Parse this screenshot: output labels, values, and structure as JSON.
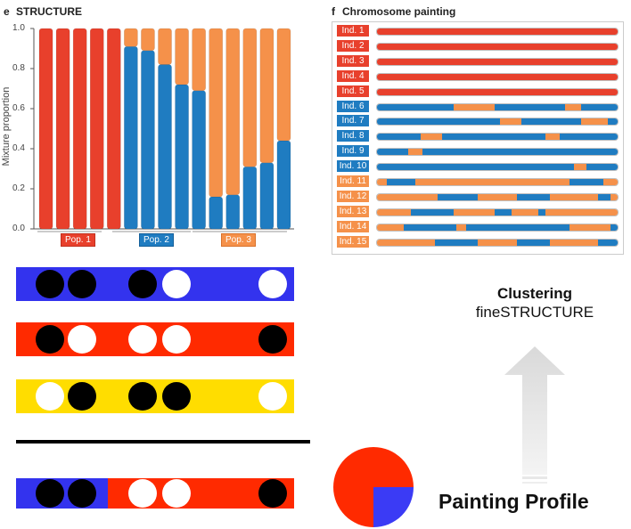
{
  "panel_e": {
    "letter": "e",
    "title": "STRUCTURE",
    "ylabel": "Mixture proportion",
    "yticks": [
      "1.0",
      "0.8",
      "0.6",
      "0.4",
      "0.2",
      "0.0"
    ],
    "populations": [
      "Pop. 1",
      "Pop. 2",
      "Pop. 3"
    ]
  },
  "panel_f": {
    "letter": "f",
    "title": "Chromosome painting",
    "individuals": [
      "Ind. 1",
      "Ind. 2",
      "Ind. 3",
      "Ind. 4",
      "Ind. 5",
      "Ind. 6",
      "Ind. 7",
      "Ind. 8",
      "Ind. 9",
      "Ind. 10",
      "Ind. 11",
      "Ind. 12",
      "Ind. 13",
      "Ind. 14",
      "Ind. 15"
    ]
  },
  "colors": {
    "red": "#e8402c",
    "blue": "#1f7cc1",
    "orange": "#f5914a",
    "bar_blue": "#3333ee",
    "bar_red": "#ff2a00",
    "bar_yellow": "#ffdd00",
    "pie_red": "#ff2a00",
    "pie_blue": "#3b3bf5"
  },
  "chart_data": {
    "type": "bar",
    "stacked": true,
    "ylabel": "Mixture proportion",
    "ylim": [
      0,
      1
    ],
    "categories": [
      "1",
      "2",
      "3",
      "4",
      "5",
      "6",
      "7",
      "8",
      "9",
      "10",
      "11",
      "12",
      "13",
      "14",
      "15"
    ],
    "groups": [
      "Pop. 1",
      "Pop. 2",
      "Pop. 3"
    ],
    "series": [
      {
        "color": "#e8402c",
        "values": [
          1,
          1,
          1,
          1,
          1,
          0,
          0,
          0,
          0,
          0,
          0,
          0,
          0,
          0,
          0
        ]
      },
      {
        "color": "#1f7cc1",
        "values": [
          0,
          0,
          0,
          0,
          0,
          0.91,
          0.89,
          0.82,
          0.72,
          0.69,
          0.16,
          0.17,
          0.31,
          0.33,
          0.44
        ]
      },
      {
        "color": "#f5914a",
        "values": [
          0,
          0,
          0,
          0,
          0,
          0.09,
          0.11,
          0.18,
          0.28,
          0.31,
          0.84,
          0.83,
          0.69,
          0.67,
          0.56
        ]
      }
    ]
  },
  "painting": [
    [
      [
        "r",
        1
      ]
    ],
    [
      [
        "r",
        1
      ]
    ],
    [
      [
        "r",
        1
      ]
    ],
    [
      [
        "r",
        1
      ]
    ],
    [
      [
        "r",
        1
      ]
    ],
    [
      [
        "b",
        0.32
      ],
      [
        "o",
        0.17
      ],
      [
        "b",
        0.29
      ],
      [
        "o",
        0.07
      ],
      [
        "b",
        0.15
      ]
    ],
    [
      [
        "b",
        0.51
      ],
      [
        "o",
        0.09
      ],
      [
        "b",
        0.25
      ],
      [
        "o",
        0.11
      ],
      [
        "b",
        0.04
      ]
    ],
    [
      [
        "b",
        0.18
      ],
      [
        "o",
        0.09
      ],
      [
        "b",
        0.43
      ],
      [
        "o",
        0.06
      ],
      [
        "b",
        0.24
      ]
    ],
    [
      [
        "b",
        0.13
      ],
      [
        "o",
        0.06
      ],
      [
        "b",
        0.81
      ]
    ],
    [
      [
        "b",
        0.82
      ],
      [
        "o",
        0.05
      ],
      [
        "b",
        0.13
      ]
    ],
    [
      [
        "o",
        0.04
      ],
      [
        "b",
        0.12
      ],
      [
        "o",
        0.64
      ],
      [
        "b",
        0.14
      ],
      [
        "o",
        0.06
      ]
    ],
    [
      [
        "o",
        0.25
      ],
      [
        "b",
        0.17
      ],
      [
        "o",
        0.16
      ],
      [
        "b",
        0.14
      ],
      [
        "o",
        0.2
      ],
      [
        "b",
        0.05
      ],
      [
        "o",
        0.03
      ]
    ],
    [
      [
        "o",
        0.14
      ],
      [
        "b",
        0.18
      ],
      [
        "o",
        0.17
      ],
      [
        "b",
        0.07
      ],
      [
        "o",
        0.11
      ],
      [
        "b",
        0.03
      ],
      [
        "o",
        0.3
      ]
    ],
    [
      [
        "o",
        0.11
      ],
      [
        "b",
        0.22
      ],
      [
        "o",
        0.04
      ],
      [
        "b",
        0.43
      ],
      [
        "o",
        0.17
      ],
      [
        "b",
        0.03
      ]
    ],
    [
      [
        "o",
        0.24
      ],
      [
        "b",
        0.18
      ],
      [
        "o",
        0.16
      ],
      [
        "b",
        0.14
      ],
      [
        "o",
        0.2
      ],
      [
        "b",
        0.08
      ]
    ]
  ],
  "haplotype_rows": [
    {
      "color": "#3333ee",
      "dots": [
        "k",
        "k",
        "g",
        "k",
        "w",
        "g",
        "g",
        "w"
      ]
    },
    {
      "color": "#ff2a00",
      "dots": [
        "k",
        "w",
        "g",
        "w",
        "w",
        "g",
        "g",
        "k"
      ]
    },
    {
      "color": "#ffdd00",
      "dots": [
        "w",
        "k",
        "g",
        "k",
        "k",
        "g",
        "g",
        "w"
      ]
    }
  ],
  "painted_row": {
    "segments": [
      {
        "color": "#3333ee",
        "fraction": 0.33
      },
      {
        "color": "#ff2a00",
        "fraction": 0.67
      }
    ],
    "dots": [
      "k",
      "k",
      "g",
      "w",
      "w",
      "g",
      "g",
      "k"
    ]
  },
  "pie": {
    "red": 0.75,
    "blue": 0.25
  },
  "clustering": {
    "bold": "Clustering",
    "plain": "fineSTRUCTURE"
  },
  "painting_profile": "Painting Profile"
}
